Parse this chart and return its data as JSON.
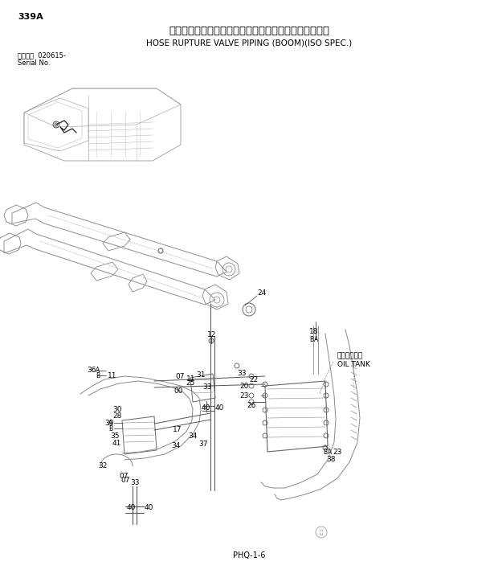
{
  "title_jp": "ホースラプチャーバルブ配管（ブーム）（ＩＳＯ仕様）",
  "title_en": "HOSE RUPTURE VALVE PIPING (BOOM)(ISO SPEC.)",
  "page_num": "339A",
  "serial_label": "通用号機  020615-",
  "serial_label2": "Serial No.",
  "page_code": "PHQ-1-6",
  "bg_color": "#ffffff",
  "lc": "#444444",
  "lc2": "#888888"
}
